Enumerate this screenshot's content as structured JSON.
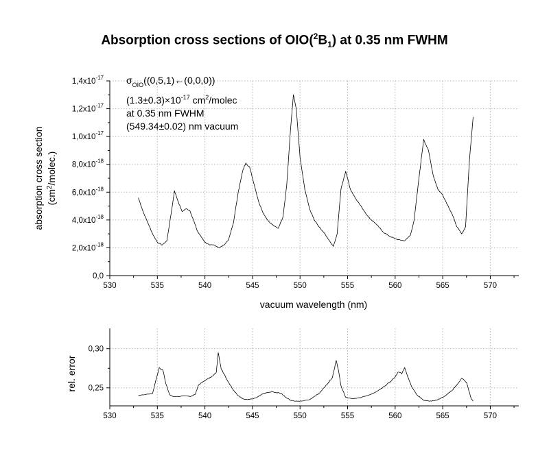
{
  "title": {
    "prefix": "Absorption cross sections of OIO(",
    "sup": "2",
    "main": "B",
    "sub": "1",
    "suffix": ") at 0.35 nm FWHM"
  },
  "chart_data": [
    {
      "type": "line",
      "panel": "top",
      "xlabel": "vacuum wavelength (nm)",
      "ylabel_line1": "absorption cross section",
      "ylabel_line2_pre": "(cm",
      "ylabel_line2_sup": "2",
      "ylabel_line2_post": "/molec.)",
      "xlim": [
        530,
        573
      ],
      "ylim": [
        0,
        1.4e-17
      ],
      "grid": true,
      "xticks": [
        530,
        535,
        540,
        545,
        550,
        555,
        560,
        565,
        570
      ],
      "yticks": [
        {
          "value": 0,
          "mant": "0,0",
          "exp": ""
        },
        {
          "value": 2e-18,
          "mant": "2,0x10",
          "exp": "-18"
        },
        {
          "value": 4e-18,
          "mant": "4,0x10",
          "exp": "-18"
        },
        {
          "value": 6e-18,
          "mant": "6,0x10",
          "exp": "-18"
        },
        {
          "value": 8e-18,
          "mant": "8,0x10",
          "exp": "-18"
        },
        {
          "value": 1e-17,
          "mant": "1,0x10",
          "exp": "-17"
        },
        {
          "value": 1.2e-17,
          "mant": "1,2x10",
          "exp": "-17"
        },
        {
          "value": 1.4e-17,
          "mant": "1,4x10",
          "exp": "-17"
        }
      ],
      "annotation": {
        "line1_pre": "σ",
        "line1_sub": "OIO",
        "line1_post": "((0,5,1)←(0,0,0))",
        "line2_pre": "(1.3±0.3)×10",
        "line2_sup": "-17",
        "line2_post": " cm",
        "line2_sup2": "2",
        "line2_post2": "/molec",
        "line3": "at 0.35 nm FWHM",
        "line4": "(549.34±0.02) nm vacuum"
      },
      "series": [
        {
          "x": [
            533.0,
            533.5,
            534.0,
            534.5,
            535.0,
            535.5,
            536.0,
            536.5,
            536.8,
            537.2,
            537.6,
            538.0,
            538.4,
            538.8,
            539.2,
            539.6,
            540.0,
            540.5,
            541.0,
            541.5,
            542.0,
            542.5,
            543.0,
            543.5,
            544.0,
            544.3,
            544.7,
            545.2,
            545.7,
            546.2,
            546.7,
            547.2,
            547.7,
            548.2,
            548.6,
            549.0,
            549.3,
            549.6,
            550.0,
            550.5,
            551.0,
            551.5,
            552.0,
            552.5,
            553.0,
            553.5,
            553.9,
            554.3,
            554.8,
            555.3,
            555.8,
            556.5,
            557.2,
            558.0,
            558.8,
            559.5,
            560.2,
            561.0,
            561.6,
            562.0,
            562.5,
            563.0,
            563.5,
            564.0,
            564.5,
            565.0,
            565.5,
            566.0,
            566.5,
            567.0,
            567.4,
            567.8,
            568.2
          ],
          "y": [
            5.6e-18,
            4.6e-18,
            3.8e-18,
            3e-18,
            2.4e-18,
            2.2e-18,
            2.5e-18,
            4.7e-18,
            6.1e-18,
            5.3e-18,
            4.6e-18,
            4.8e-18,
            4.7e-18,
            4e-18,
            3.2e-18,
            2.8e-18,
            2.4e-18,
            2.2e-18,
            2.2e-18,
            2e-18,
            2.2e-18,
            2.6e-18,
            3.8e-18,
            6e-18,
            7.6e-18,
            8.1e-18,
            7.8e-18,
            6.5e-18,
            5.2e-18,
            4.4e-18,
            3.9e-18,
            3.6e-18,
            3.4e-18,
            4.2e-18,
            6.5e-18,
            1.05e-17,
            1.3e-17,
            1.2e-17,
            8.5e-18,
            6.2e-18,
            4.8e-18,
            4e-18,
            3.5e-18,
            3.1e-18,
            2.6e-18,
            2.1e-18,
            3e-18,
            6.2e-18,
            7.5e-18,
            6.2e-18,
            5.6e-18,
            4.9e-18,
            4.2e-18,
            3.7e-18,
            3.1e-18,
            2.8e-18,
            2.6e-18,
            2.5e-18,
            2.9e-18,
            4e-18,
            7e-18,
            9.8e-18,
            9e-18,
            7.2e-18,
            6.2e-18,
            5.8e-18,
            5.1e-18,
            4.4e-18,
            3.5e-18,
            3e-18,
            3.5e-18,
            8.2e-18,
            1.14e-17
          ]
        }
      ]
    },
    {
      "type": "line",
      "panel": "bottom",
      "ylabel": "rel. error",
      "xlim": [
        530,
        573
      ],
      "ylim": [
        0.227,
        0.326
      ],
      "grid": true,
      "xticks": [
        530,
        535,
        540,
        545,
        550,
        555,
        560,
        565,
        570
      ],
      "yticks": [
        {
          "value": 0.25,
          "label": "0,25"
        },
        {
          "value": 0.3,
          "label": "0,30"
        }
      ],
      "series": [
        {
          "x": [
            533.0,
            533.5,
            534.0,
            534.5,
            534.9,
            535.2,
            535.6,
            535.9,
            536.3,
            536.7,
            537.2,
            537.8,
            538.5,
            539.0,
            539.3,
            539.8,
            540.3,
            540.8,
            541.2,
            541.4,
            541.7,
            542.0,
            542.5,
            543.0,
            543.5,
            544.0,
            544.5,
            545.0,
            545.5,
            546.0,
            546.5,
            547.0,
            547.5,
            548.0,
            548.5,
            549.0,
            549.5,
            550.0,
            550.5,
            551.0,
            551.5,
            552.0,
            552.5,
            553.0,
            553.4,
            553.8,
            554.0,
            554.3,
            554.8,
            555.5,
            556.0,
            556.5,
            557.0,
            557.5,
            558.0,
            558.5,
            559.0,
            559.5,
            560.0,
            560.3,
            560.7,
            561.0,
            561.4,
            561.8,
            562.3,
            563.0,
            563.8,
            564.5,
            565.0,
            565.5,
            566.0,
            566.5,
            567.0,
            567.5,
            568.0,
            568.2
          ],
          "y": [
            0.24,
            0.241,
            0.242,
            0.243,
            0.262,
            0.276,
            0.272,
            0.255,
            0.241,
            0.239,
            0.239,
            0.24,
            0.239,
            0.242,
            0.253,
            0.258,
            0.262,
            0.265,
            0.27,
            0.295,
            0.275,
            0.268,
            0.257,
            0.247,
            0.24,
            0.236,
            0.235,
            0.236,
            0.238,
            0.242,
            0.244,
            0.245,
            0.244,
            0.243,
            0.238,
            0.234,
            0.233,
            0.233,
            0.234,
            0.235,
            0.239,
            0.243,
            0.25,
            0.257,
            0.263,
            0.285,
            0.275,
            0.253,
            0.238,
            0.236,
            0.237,
            0.238,
            0.24,
            0.242,
            0.245,
            0.249,
            0.253,
            0.258,
            0.264,
            0.27,
            0.268,
            0.276,
            0.262,
            0.25,
            0.241,
            0.234,
            0.233,
            0.235,
            0.238,
            0.242,
            0.247,
            0.254,
            0.262,
            0.257,
            0.236,
            0.233
          ]
        }
      ]
    }
  ]
}
